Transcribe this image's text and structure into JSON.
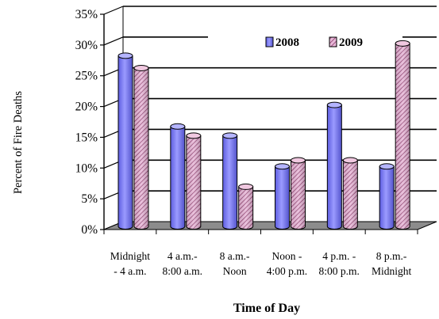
{
  "chart_data": {
    "type": "bar",
    "title": "",
    "xlabel": "Time of Day",
    "ylabel": "Percent of Fire Deaths",
    "ylim": [
      0,
      35
    ],
    "yticks": [
      "0%",
      "5%",
      "10%",
      "15%",
      "20%",
      "25%",
      "30%",
      "35%"
    ],
    "ytick_values": [
      0,
      5,
      10,
      15,
      20,
      25,
      30,
      35
    ],
    "categories": [
      [
        "Midnight",
        "- 4 a.m."
      ],
      [
        "4 a.m.-",
        "8:00 a.m."
      ],
      [
        "8 a.m.-",
        "Noon"
      ],
      [
        "Noon -",
        "4:00 p.m."
      ],
      [
        "4 p.m. -",
        "8:00 p.m."
      ],
      [
        "8 p.m.-",
        "Midnight"
      ]
    ],
    "series": [
      {
        "name": "2008",
        "values": [
          28,
          16.5,
          15,
          10,
          20,
          10
        ],
        "color": "#7b7bf0"
      },
      {
        "name": "2009",
        "values": [
          26,
          15,
          6.7,
          11,
          11,
          30
        ],
        "color": "#d9a0c8"
      }
    ],
    "legend_position": "top-right",
    "grid": true
  }
}
